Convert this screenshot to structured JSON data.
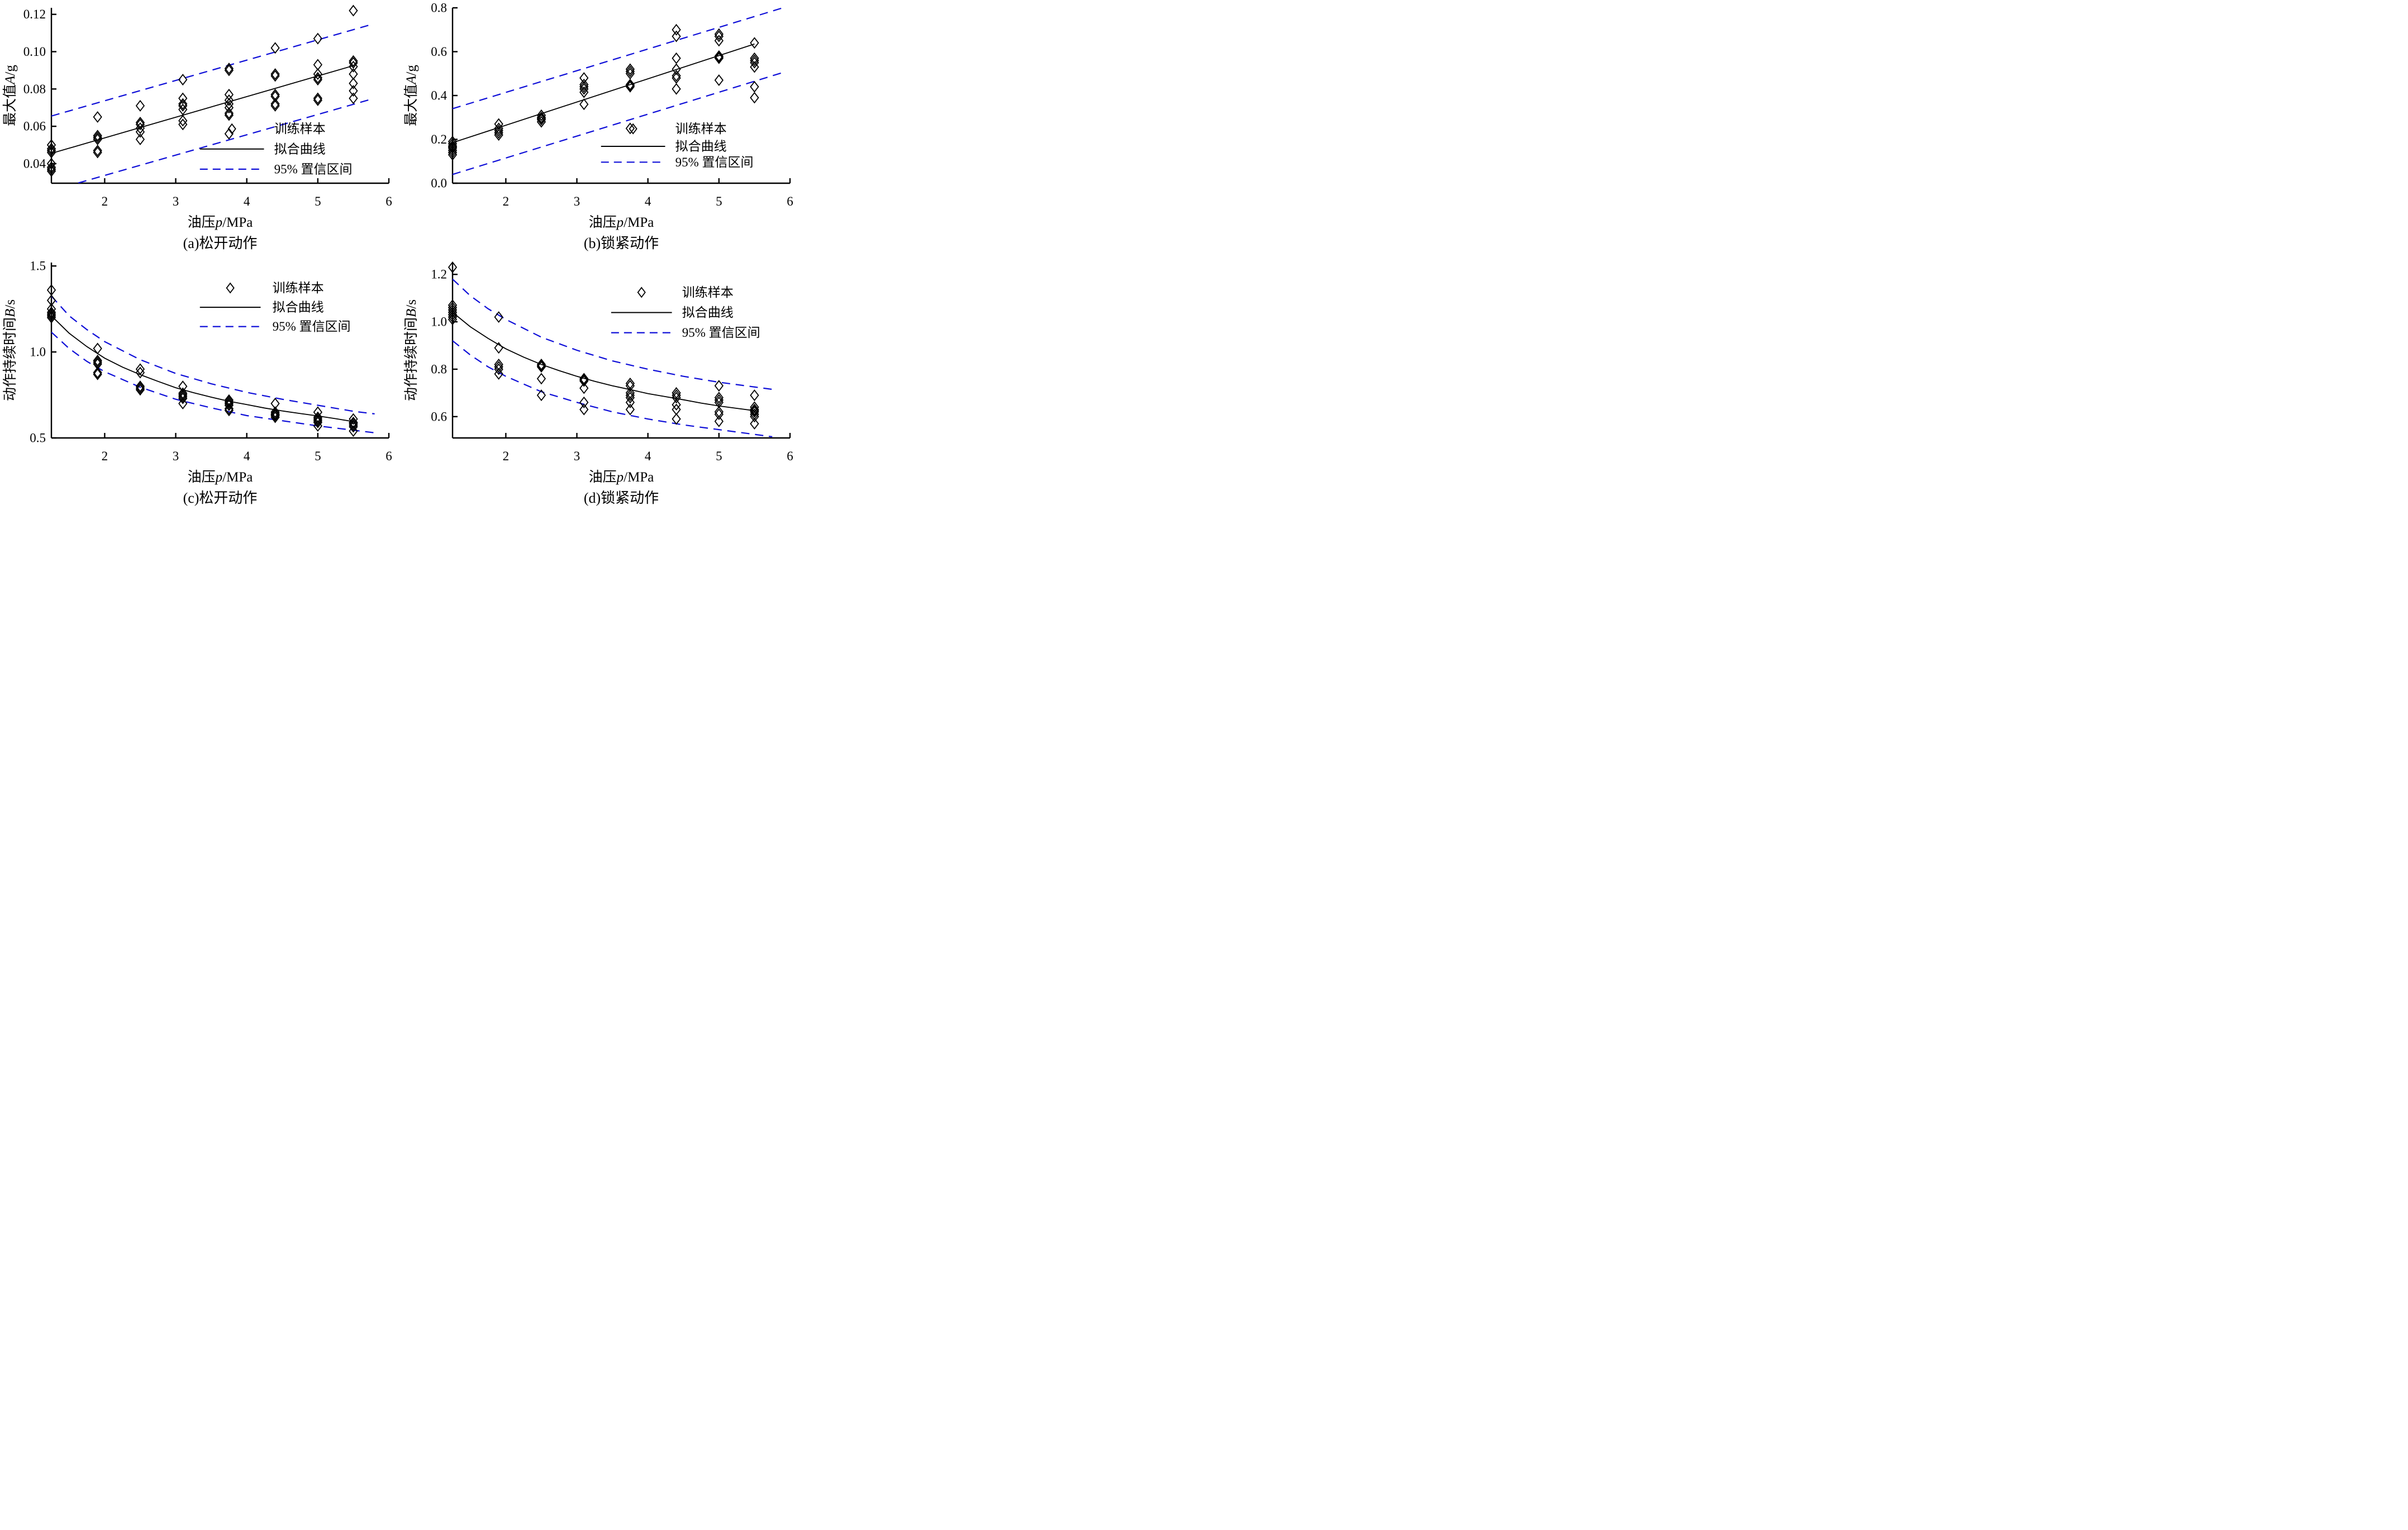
{
  "figure": {
    "background": "#ffffff"
  },
  "colors": {
    "fit": "#000000",
    "marker": "#000000",
    "ci": "#0f0fd8",
    "axis": "#000000"
  },
  "legend_labels": {
    "samples": "训练样本",
    "fit": "拟合曲线",
    "ci": "95% 置信区间"
  },
  "chart_data": [
    {
      "id": "a",
      "type": "scatter",
      "caption": "(a)松开动作",
      "xlabel": {
        "prefix": "油压",
        "var": "p",
        "unit": "/MPa"
      },
      "ylabel": {
        "prefix": "最大值",
        "var": "A",
        "unit": "/g"
      },
      "xlim": [
        1.25,
        6.0
      ],
      "ylim": [
        0.0295,
        0.1235
      ],
      "x_ticks": {
        "values": [
          2,
          3,
          4,
          5,
          6
        ],
        "labels": [
          "2",
          "3",
          "4",
          "5",
          "6"
        ]
      },
      "y_ticks": {
        "values": [
          0.04,
          0.06,
          0.08,
          0.1,
          0.12
        ],
        "labels": [
          "0.04",
          "0.06",
          "0.08",
          "0.10",
          "0.12"
        ]
      },
      "series": {
        "samples": [
          {
            "p": 1.25,
            "values": [
              0.05,
              0.048,
              0.047,
              0.046,
              0.04,
              0.038,
              0.037,
              0.036
            ]
          },
          {
            "p": 1.9,
            "values": [
              0.065,
              0.055,
              0.054,
              0.053,
              0.047,
              0.046
            ]
          },
          {
            "p": 2.5,
            "values": [
              0.071,
              0.062,
              0.061,
              0.059,
              0.057,
              0.053
            ]
          },
          {
            "p": 3.1,
            "values": [
              0.085,
              0.075,
              0.072,
              0.071,
              0.069,
              0.063,
              0.061
            ]
          },
          {
            "p": 3.75,
            "values": [
              0.091,
              0.09,
              0.077,
              0.074,
              0.072,
              0.07,
              0.067,
              0.066,
              0.056
            ]
          },
          {
            "p": 4.4,
            "values": [
              0.102,
              0.088,
              0.087,
              0.077,
              0.076,
              0.072,
              0.071
            ]
          },
          {
            "p": 5.0,
            "values": [
              0.107,
              0.093,
              0.088,
              0.086,
              0.085,
              0.075,
              0.074
            ]
          },
          {
            "p": 5.5,
            "values": [
              0.122,
              0.095,
              0.094,
              0.092,
              0.088,
              0.083,
              0.079,
              0.075
            ]
          }
        ],
        "fit": [
          [
            1.25,
            0.0455
          ],
          [
            5.5,
            0.0925
          ]
        ],
        "ci_upper": [
          [
            1.25,
            0.0655
          ],
          [
            5.75,
            0.1145
          ]
        ],
        "ci_lower": [
          [
            1.25,
            0.0255
          ],
          [
            5.75,
            0.0745
          ]
        ]
      },
      "legend_pos": {
        "sym_x0": 0.44,
        "sym_x1": 0.63,
        "text_x": 0.66,
        "rows": [
          0.69,
          0.805,
          0.92
        ],
        "marker_row": 0
      }
    },
    {
      "id": "b",
      "type": "scatter",
      "caption": "(b)锁紧动作",
      "xlabel": {
        "prefix": "油压",
        "var": "p",
        "unit": "/MPa"
      },
      "ylabel": {
        "prefix": "最大值",
        "var": "A",
        "unit": "/g"
      },
      "xlim": [
        1.25,
        6.0
      ],
      "ylim": [
        0.0,
        0.8
      ],
      "x_ticks": {
        "values": [
          2,
          3,
          4,
          5,
          6
        ],
        "labels": [
          "2",
          "3",
          "4",
          "5",
          "6"
        ]
      },
      "y_ticks": {
        "values": [
          0.0,
          0.2,
          0.4,
          0.6,
          0.8
        ],
        "labels": [
          "0.0",
          "0.2",
          "0.4",
          "0.6",
          "0.8"
        ]
      },
      "series": {
        "samples": [
          {
            "p": 1.25,
            "values": [
              0.19,
              0.18,
              0.17,
              0.165,
              0.16,
              0.15,
              0.14,
              0.13
            ]
          },
          {
            "p": 1.9,
            "values": [
              0.27,
              0.25,
              0.24,
              0.23,
              0.22
            ]
          },
          {
            "p": 2.5,
            "values": [
              0.31,
              0.3,
              0.295,
              0.29,
              0.28
            ]
          },
          {
            "p": 3.1,
            "values": [
              0.48,
              0.45,
              0.44,
              0.43,
              0.415,
              0.36
            ]
          },
          {
            "p": 3.75,
            "values": [
              0.52,
              0.51,
              0.5,
              0.45,
              0.445,
              0.44,
              0.25
            ]
          },
          {
            "p": 4.4,
            "values": [
              0.7,
              0.67,
              0.57,
              0.52,
              0.49,
              0.48,
              0.43
            ]
          },
          {
            "p": 5.0,
            "values": [
              0.68,
              0.67,
              0.65,
              0.58,
              0.575,
              0.57,
              0.47
            ]
          },
          {
            "p": 5.5,
            "values": [
              0.64,
              0.57,
              0.56,
              0.55,
              0.53,
              0.44,
              0.39
            ]
          }
        ],
        "fit": [
          [
            1.25,
            0.185
          ],
          [
            5.5,
            0.635
          ]
        ],
        "ci_upper": [
          [
            1.25,
            0.34
          ],
          [
            5.9,
            0.8
          ]
        ],
        "ci_lower": [
          [
            1.25,
            0.04
          ],
          [
            5.9,
            0.505
          ]
        ]
      },
      "legend_pos": {
        "sym_x0": 0.44,
        "sym_x1": 0.63,
        "text_x": 0.66,
        "rows": [
          0.69,
          0.79,
          0.88
        ],
        "marker_row": 0
      }
    },
    {
      "id": "c",
      "type": "scatter",
      "caption": "(c)松开动作",
      "xlabel": {
        "prefix": "油压",
        "var": "p",
        "unit": "/MPa"
      },
      "ylabel": {
        "prefix": "动作持续时间",
        "var": "B",
        "unit": "/s"
      },
      "xlim": [
        1.25,
        6.0
      ],
      "ylim": [
        0.5,
        1.52
      ],
      "x_ticks": {
        "values": [
          2,
          3,
          4,
          5,
          6
        ],
        "labels": [
          "2",
          "3",
          "4",
          "5",
          "6"
        ]
      },
      "y_ticks": {
        "values": [
          0.5,
          1.0,
          1.5
        ],
        "labels": [
          "0.5",
          "1.0",
          "1.5"
        ]
      },
      "series": {
        "samples": [
          {
            "p": 1.25,
            "values": [
              1.36,
              1.3,
              1.25,
              1.23,
              1.22,
              1.21,
              1.2
            ]
          },
          {
            "p": 1.9,
            "values": [
              1.02,
              0.95,
              0.94,
              0.93,
              0.88,
              0.87
            ]
          },
          {
            "p": 2.5,
            "values": [
              0.9,
              0.88,
              0.8,
              0.79,
              0.78
            ]
          },
          {
            "p": 3.1,
            "values": [
              0.8,
              0.76,
              0.75,
              0.74,
              0.73,
              0.7
            ]
          },
          {
            "p": 3.75,
            "values": [
              0.72,
              0.71,
              0.7,
              0.69,
              0.67,
              0.66
            ]
          },
          {
            "p": 4.4,
            "values": [
              0.7,
              0.65,
              0.64,
              0.635,
              0.63,
              0.62
            ]
          },
          {
            "p": 5.0,
            "values": [
              0.65,
              0.62,
              0.61,
              0.6,
              0.59,
              0.57
            ]
          },
          {
            "p": 5.5,
            "values": [
              0.61,
              0.59,
              0.585,
              0.575,
              0.565,
              0.54
            ]
          }
        ],
        "fit": [
          [
            1.25,
            1.21
          ],
          [
            1.5,
            1.109
          ],
          [
            1.75,
            1.031
          ],
          [
            2,
            0.964
          ],
          [
            2.25,
            0.912
          ],
          [
            2.5,
            0.868
          ],
          [
            2.75,
            0.829
          ],
          [
            3,
            0.792
          ],
          [
            3.25,
            0.763
          ],
          [
            3.5,
            0.737
          ],
          [
            3.75,
            0.713
          ],
          [
            4,
            0.694
          ],
          [
            4.25,
            0.674
          ],
          [
            4.5,
            0.657
          ],
          [
            4.75,
            0.642
          ],
          [
            5,
            0.628
          ],
          [
            5.25,
            0.612
          ],
          [
            5.5,
            0.595
          ]
        ],
        "ci_upper": [
          [
            1.25,
            1.325
          ],
          [
            1.5,
            1.21
          ],
          [
            1.75,
            1.13
          ],
          [
            2,
            1.06
          ],
          [
            2.5,
            0.955
          ],
          [
            3,
            0.875
          ],
          [
            3.5,
            0.815
          ],
          [
            4,
            0.765
          ],
          [
            4.5,
            0.725
          ],
          [
            5,
            0.69
          ],
          [
            5.5,
            0.655
          ],
          [
            5.8,
            0.64
          ]
        ],
        "ci_lower": [
          [
            1.25,
            1.115
          ],
          [
            1.5,
            1.02
          ],
          [
            1.75,
            0.945
          ],
          [
            2,
            0.885
          ],
          [
            2.5,
            0.795
          ],
          [
            3,
            0.725
          ],
          [
            3.5,
            0.675
          ],
          [
            4,
            0.63
          ],
          [
            4.5,
            0.6
          ],
          [
            5,
            0.57
          ],
          [
            5.5,
            0.545
          ],
          [
            5.8,
            0.53
          ]
        ]
      },
      "legend_pos": {
        "sym_x0": 0.44,
        "sym_x1": 0.62,
        "text_x": 0.655,
        "rows": [
          0.145,
          0.255,
          0.365
        ],
        "marker_row": 0
      }
    },
    {
      "id": "d",
      "type": "scatter",
      "caption": "(d)锁紧动作",
      "xlabel": {
        "prefix": "油压",
        "var": "p",
        "unit": "/MPa"
      },
      "ylabel": {
        "prefix": "动作持续时间",
        "var": "B",
        "unit": "/s"
      },
      "xlim": [
        1.25,
        6.0
      ],
      "ylim": [
        0.51,
        1.25
      ],
      "x_ticks": {
        "values": [
          2,
          3,
          4,
          5,
          6
        ],
        "labels": [
          "2",
          "3",
          "4",
          "5",
          "6"
        ]
      },
      "y_ticks": {
        "values": [
          0.6,
          0.8,
          1.0,
          1.2
        ],
        "labels": [
          "0.6",
          "0.8",
          "1.0",
          "1.2"
        ]
      },
      "series": {
        "samples": [
          {
            "p": 1.25,
            "values": [
              1.23,
              1.07,
              1.06,
              1.05,
              1.04,
              1.03,
              1.02,
              1.01
            ]
          },
          {
            "p": 1.9,
            "values": [
              1.02,
              0.89,
              0.82,
              0.81,
              0.8,
              0.78
            ]
          },
          {
            "p": 2.5,
            "values": [
              0.82,
              0.815,
              0.81,
              0.76,
              0.69
            ]
          },
          {
            "p": 3.1,
            "values": [
              0.76,
              0.755,
              0.75,
              0.72,
              0.66,
              0.63
            ]
          },
          {
            "p": 3.75,
            "values": [
              0.74,
              0.73,
              0.7,
              0.69,
              0.68,
              0.66,
              0.63
            ]
          },
          {
            "p": 4.4,
            "values": [
              0.7,
              0.69,
              0.68,
              0.65,
              0.63,
              0.59
            ]
          },
          {
            "p": 5.0,
            "values": [
              0.73,
              0.68,
              0.67,
              0.66,
              0.62,
              0.61,
              0.58
            ]
          },
          {
            "p": 5.5,
            "values": [
              0.69,
              0.64,
              0.63,
              0.625,
              0.62,
              0.61,
              0.6,
              0.57
            ]
          }
        ],
        "fit": [
          [
            1.25,
            1.04
          ],
          [
            1.5,
            0.979
          ],
          [
            1.75,
            0.93
          ],
          [
            2,
            0.886
          ],
          [
            2.25,
            0.851
          ],
          [
            2.5,
            0.82
          ],
          [
            2.75,
            0.794
          ],
          [
            3,
            0.77
          ],
          [
            3.25,
            0.749
          ],
          [
            3.5,
            0.73
          ],
          [
            3.75,
            0.714
          ],
          [
            4,
            0.697
          ],
          [
            4.25,
            0.684
          ],
          [
            4.5,
            0.671
          ],
          [
            4.75,
            0.657
          ],
          [
            5,
            0.645
          ],
          [
            5.25,
            0.635
          ],
          [
            5.5,
            0.625
          ]
        ],
        "ci_upper": [
          [
            1.25,
            1.18
          ],
          [
            1.5,
            1.11
          ],
          [
            1.75,
            1.055
          ],
          [
            2,
            1.01
          ],
          [
            2.5,
            0.935
          ],
          [
            3,
            0.88
          ],
          [
            3.5,
            0.835
          ],
          [
            4,
            0.8
          ],
          [
            4.5,
            0.77
          ],
          [
            5,
            0.745
          ],
          [
            5.5,
            0.725
          ],
          [
            5.75,
            0.715
          ]
        ],
        "ci_lower": [
          [
            1.25,
            0.92
          ],
          [
            1.5,
            0.86
          ],
          [
            1.75,
            0.81
          ],
          [
            2,
            0.77
          ],
          [
            2.5,
            0.705
          ],
          [
            3,
            0.66
          ],
          [
            3.5,
            0.62
          ],
          [
            4,
            0.59
          ],
          [
            4.5,
            0.565
          ],
          [
            5,
            0.545
          ],
          [
            5.5,
            0.525
          ],
          [
            5.75,
            0.515
          ]
        ]
      },
      "legend_pos": {
        "sym_x0": 0.47,
        "sym_x1": 0.65,
        "text_x": 0.68,
        "rows": [
          0.17,
          0.285,
          0.4
        ],
        "marker_row": 0
      }
    }
  ]
}
